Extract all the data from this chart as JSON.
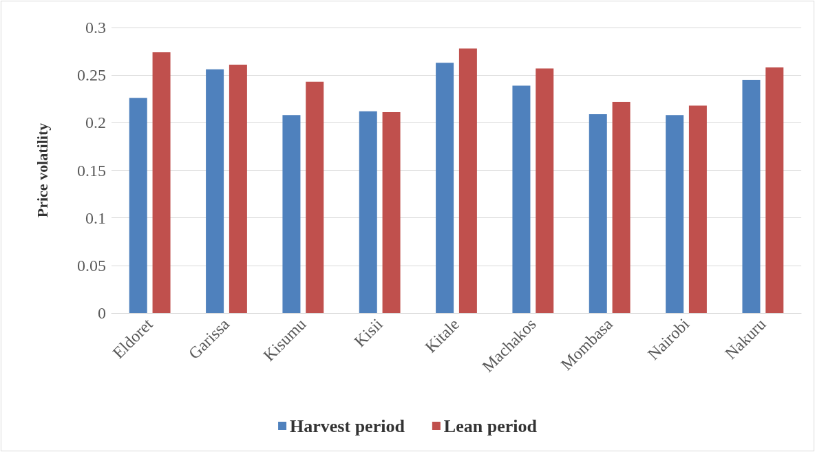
{
  "chart_data": {
    "type": "bar",
    "ylabel": "Price volatility",
    "categories": [
      "Eldoret",
      "Garissa",
      "Kisumu",
      "Kisii",
      "Kitale",
      "Machakos",
      "Mombasa",
      "Nairobi",
      "Nakuru"
    ],
    "series": [
      {
        "name": "Harvest period",
        "color": "#4f81bd",
        "values": [
          0.226,
          0.256,
          0.208,
          0.212,
          0.263,
          0.239,
          0.209,
          0.208,
          0.245
        ]
      },
      {
        "name": "Lean period",
        "color": "#c0504d",
        "values": [
          0.274,
          0.261,
          0.243,
          0.211,
          0.278,
          0.257,
          0.222,
          0.218,
          0.258
        ]
      }
    ],
    "ylim": [
      0,
      0.3
    ],
    "yticks": [
      0,
      0.05,
      0.1,
      0.15,
      0.2,
      0.25,
      0.3
    ],
    "grid": "y",
    "legend": "bottom"
  }
}
